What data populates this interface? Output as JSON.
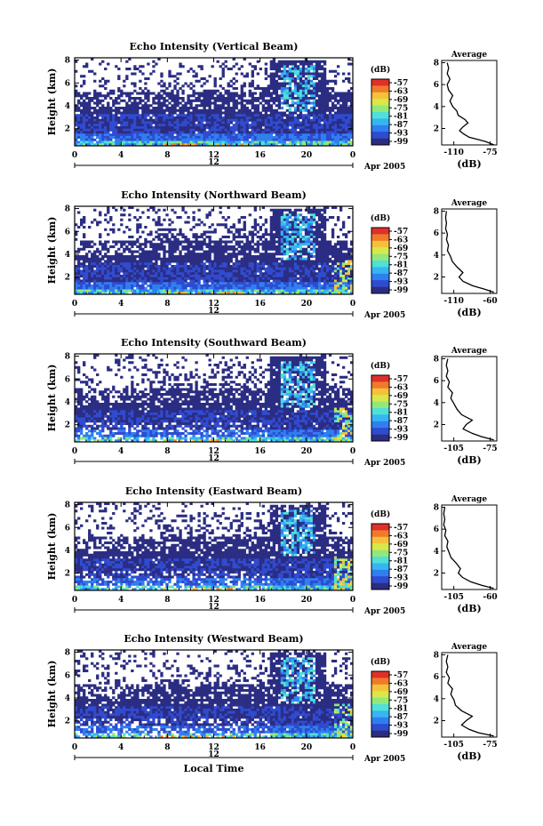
{
  "chart_data": [
    {
      "type": "heatmap",
      "title": "Echo Intensity (Vertical Beam)",
      "ylabel": "Height (km)",
      "xticks": [
        "0",
        "4",
        "8",
        "12",
        "16",
        "20",
        "0"
      ],
      "yticks": [
        "2",
        "4",
        "6",
        "8"
      ],
      "ylim": [
        0.5,
        8.2
      ],
      "date_label": "12",
      "date_suffix": "Apr 2005",
      "colorbar": {
        "unit": "(dB)",
        "ticks": [
          "-57",
          "-63",
          "-69",
          "-75",
          "-81",
          "-87",
          "-93",
          "-99"
        ]
      },
      "avg_profile": {
        "title": "Average",
        "xlabel": "(dB)",
        "xticks": [
          "-110",
          "-75"
        ],
        "xlim": [
          -112,
          -72
        ],
        "yticks": [
          "2",
          "4",
          "6",
          "8"
        ],
        "points": [
          [
            -74,
            0.5
          ],
          [
            -80,
            0.8
          ],
          [
            -86,
            1.0
          ],
          [
            -92,
            1.2
          ],
          [
            -96,
            1.5
          ],
          [
            -99,
            1.8
          ],
          [
            -97,
            2.1
          ],
          [
            -93,
            2.5
          ],
          [
            -95,
            2.8
          ],
          [
            -100,
            3.2
          ],
          [
            -101,
            3.6
          ],
          [
            -104,
            4.0
          ],
          [
            -106,
            4.5
          ],
          [
            -104,
            5.0
          ],
          [
            -107,
            5.5
          ],
          [
            -108,
            6.0
          ],
          [
            -106,
            6.5
          ],
          [
            -108,
            7.0
          ],
          [
            -107,
            7.5
          ],
          [
            -108,
            8.0
          ]
        ]
      }
    },
    {
      "type": "heatmap",
      "title": "Echo Intensity (Northward Beam)",
      "ylabel": "Height (km)",
      "xticks": [
        "0",
        "4",
        "8",
        "12",
        "16",
        "20",
        "0"
      ],
      "yticks": [
        "2",
        "4",
        "6",
        "8"
      ],
      "ylim": [
        0.5,
        8.2
      ],
      "date_label": "12",
      "date_suffix": "Apr 2005",
      "colorbar": {
        "unit": "(dB)",
        "ticks": [
          "-57",
          "-63",
          "-69",
          "-75",
          "-81",
          "-87",
          "-93",
          "-99"
        ]
      },
      "avg_profile": {
        "title": "Average",
        "xlabel": "(dB)",
        "xticks": [
          "-110",
          "-60"
        ],
        "xlim": [
          -112,
          -55
        ],
        "yticks": [
          "2",
          "4",
          "6",
          "8"
        ],
        "points": [
          [
            -58,
            0.6
          ],
          [
            -68,
            0.9
          ],
          [
            -80,
            1.2
          ],
          [
            -90,
            1.6
          ],
          [
            -94,
            2.0
          ],
          [
            -90,
            2.4
          ],
          [
            -96,
            2.9
          ],
          [
            -101,
            3.4
          ],
          [
            -103,
            3.9
          ],
          [
            -106,
            4.4
          ],
          [
            -105,
            4.9
          ],
          [
            -107,
            5.4
          ],
          [
            -106,
            5.9
          ],
          [
            -108,
            6.4
          ],
          [
            -107,
            6.9
          ],
          [
            -108,
            7.4
          ],
          [
            -107,
            8.0
          ]
        ]
      }
    },
    {
      "type": "heatmap",
      "title": "Echo Intensity (Southward Beam)",
      "ylabel": "Height (km)",
      "xticks": [
        "0",
        "4",
        "8",
        "12",
        "16",
        "20",
        "0"
      ],
      "yticks": [
        "2",
        "4",
        "6",
        "8"
      ],
      "ylim": [
        0.5,
        8.2
      ],
      "date_label": "12",
      "date_suffix": "Apr 2005",
      "colorbar": {
        "unit": "(dB)",
        "ticks": [
          "-57",
          "-63",
          "-69",
          "-75",
          "-81",
          "-87",
          "-93",
          "-99"
        ]
      },
      "avg_profile": {
        "title": "Average",
        "xlabel": "(dB)",
        "xticks": [
          "-105",
          "-75"
        ],
        "xlim": [
          -108,
          -72
        ],
        "yticks": [
          "2",
          "4",
          "6",
          "8"
        ],
        "points": [
          [
            -74,
            0.6
          ],
          [
            -82,
            0.9
          ],
          [
            -88,
            1.2
          ],
          [
            -94,
            1.6
          ],
          [
            -92,
            2.0
          ],
          [
            -88,
            2.4
          ],
          [
            -95,
            2.9
          ],
          [
            -98,
            3.4
          ],
          [
            -100,
            3.9
          ],
          [
            -102,
            4.4
          ],
          [
            -101,
            4.9
          ],
          [
            -104,
            5.4
          ],
          [
            -103,
            5.9
          ],
          [
            -105,
            6.4
          ],
          [
            -104,
            6.9
          ],
          [
            -105,
            7.4
          ],
          [
            -104,
            8.0
          ]
        ]
      }
    },
    {
      "type": "heatmap",
      "title": "Echo Intensity (Eastward Beam)",
      "ylabel": "Height (km)",
      "xticks": [
        "0",
        "4",
        "8",
        "12",
        "16",
        "20",
        "0"
      ],
      "yticks": [
        "2",
        "4",
        "6",
        "8"
      ],
      "ylim": [
        0.5,
        8.2
      ],
      "date_label": "12",
      "date_suffix": "Apr 2005",
      "colorbar": {
        "unit": "(dB)",
        "ticks": [
          "-57",
          "-63",
          "-69",
          "-75",
          "-81",
          "-87",
          "-93",
          "-99"
        ]
      },
      "avg_profile": {
        "title": "Average",
        "xlabel": "(dB)",
        "xticks": [
          "-105",
          "-60"
        ],
        "xlim": [
          -108,
          -55
        ],
        "yticks": [
          "2",
          "4",
          "6",
          "8"
        ],
        "points": [
          [
            -58,
            0.6
          ],
          [
            -70,
            0.9
          ],
          [
            -80,
            1.2
          ],
          [
            -88,
            1.6
          ],
          [
            -92,
            2.0
          ],
          [
            -90,
            2.4
          ],
          [
            -94,
            2.9
          ],
          [
            -99,
            3.4
          ],
          [
            -101,
            3.9
          ],
          [
            -103,
            4.4
          ],
          [
            -102,
            4.9
          ],
          [
            -105,
            5.4
          ],
          [
            -104,
            5.9
          ],
          [
            -106,
            6.4
          ],
          [
            -105,
            6.9
          ],
          [
            -106,
            7.4
          ],
          [
            -105,
            8.0
          ]
        ]
      }
    },
    {
      "type": "heatmap",
      "title": "Echo Intensity (Westward Beam)",
      "ylabel": "Height (km)",
      "xlabel": "Local Time",
      "xticks": [
        "0",
        "4",
        "8",
        "12",
        "16",
        "20",
        "0"
      ],
      "yticks": [
        "2",
        "4",
        "6",
        "8"
      ],
      "ylim": [
        0.5,
        8.2
      ],
      "date_label": "12",
      "date_suffix": "Apr 2005",
      "colorbar": {
        "unit": "(dB)",
        "ticks": [
          "-57",
          "-63",
          "-69",
          "-75",
          "-81",
          "-87",
          "-93",
          "-99"
        ]
      },
      "avg_profile": {
        "title": "Average",
        "xlabel": "(dB)",
        "xticks": [
          "-105",
          "-75"
        ],
        "xlim": [
          -108,
          -72
        ],
        "yticks": [
          "2",
          "4",
          "6",
          "8"
        ],
        "points": [
          [
            -74,
            0.6
          ],
          [
            -84,
            0.9
          ],
          [
            -90,
            1.2
          ],
          [
            -95,
            1.6
          ],
          [
            -92,
            2.0
          ],
          [
            -88,
            2.4
          ],
          [
            -95,
            2.9
          ],
          [
            -99,
            3.4
          ],
          [
            -100,
            3.9
          ],
          [
            -102,
            4.4
          ],
          [
            -101,
            4.9
          ],
          [
            -104,
            5.4
          ],
          [
            -103,
            5.9
          ],
          [
            -105,
            6.4
          ],
          [
            -104,
            6.9
          ],
          [
            -105,
            7.4
          ],
          [
            -104,
            8.0
          ]
        ]
      }
    }
  ],
  "colors": {
    "scale": [
      "#2b2d83",
      "#2f4bd0",
      "#2f7ff0",
      "#36b6f0",
      "#4fe0d8",
      "#93e87a",
      "#d8e84a",
      "#f6c13a",
      "#f07a2a",
      "#e0302a"
    ]
  }
}
